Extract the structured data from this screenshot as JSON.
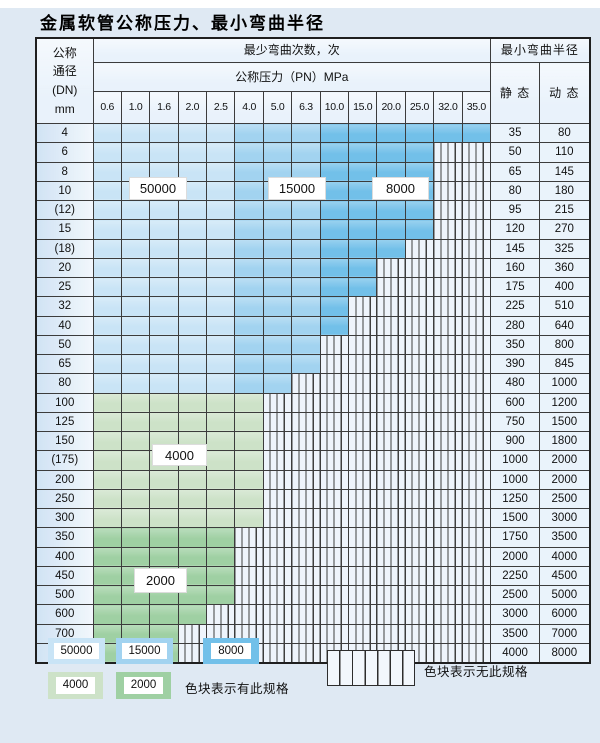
{
  "page_title": "金属软管公称压力、最小弯曲半径",
  "table": {
    "header": {
      "dn_label_lines": [
        "公称",
        "通径",
        "(DN)",
        "mm"
      ],
      "bend_cycles_label": "最少弯曲次数，次",
      "pressure_label": "公称压力（PN）MPa",
      "bend_radius_label": "最小弯曲半径",
      "static_label": "静 态",
      "dynamic_label": "动 态",
      "pressures": [
        "0.6",
        "1.0",
        "1.6",
        "2.0",
        "2.5",
        "4.0",
        "5.0",
        "6.3",
        "10.0",
        "15.0",
        "20.0",
        "25.0",
        "32.0",
        "35.0"
      ]
    },
    "palette_colors": {
      "c50000": "#c9e4f6",
      "c15000": "#a2d3f0",
      "c8000": "#72c0e9",
      "c4000": "#cde2c8",
      "c2000": "#9fd0a3"
    },
    "cycle_zones": [
      {
        "cycles": "50000",
        "palette": "c50000",
        "pressure_columns": [
          "0.6",
          "1.0",
          "1.6",
          "2.0",
          "2.5"
        ]
      },
      {
        "cycles": "15000",
        "palette": "c15000",
        "pressure_columns": [
          "4.0",
          "5.0",
          "6.3"
        ]
      },
      {
        "cycles": "8000",
        "palette": "c8000",
        "pressure_columns": [
          "10.0",
          "15.0",
          "20.0",
          "25.0",
          "32.0",
          "35.0"
        ]
      },
      {
        "cycles": "4000",
        "palette": "c4000",
        "rows": "DN 100–300"
      },
      {
        "cycles": "2000",
        "palette": "c2000",
        "rows": "DN 350–800"
      }
    ],
    "overlay_labels": [
      "50000",
      "15000",
      "8000",
      "4000",
      "2000"
    ],
    "rows": [
      {
        "dn": "4",
        "colored_through": "35.0",
        "palette": "blue",
        "static": "35",
        "dynamic": "80"
      },
      {
        "dn": "6",
        "colored_through": "25.0",
        "palette": "blue",
        "static": "50",
        "dynamic": "110"
      },
      {
        "dn": "8",
        "colored_through": "25.0",
        "palette": "blue",
        "static": "65",
        "dynamic": "145"
      },
      {
        "dn": "10",
        "colored_through": "25.0",
        "palette": "blue",
        "static": "80",
        "dynamic": "180"
      },
      {
        "dn": "(12)",
        "colored_through": "25.0",
        "palette": "blue",
        "static": "95",
        "dynamic": "215"
      },
      {
        "dn": "15",
        "colored_through": "25.0",
        "palette": "blue",
        "static": "120",
        "dynamic": "270"
      },
      {
        "dn": "(18)",
        "colored_through": "20.0",
        "palette": "blue",
        "static": "145",
        "dynamic": "325"
      },
      {
        "dn": "20",
        "colored_through": "15.0",
        "palette": "blue",
        "static": "160",
        "dynamic": "360"
      },
      {
        "dn": "25",
        "colored_through": "15.0",
        "palette": "blue",
        "static": "175",
        "dynamic": "400"
      },
      {
        "dn": "32",
        "colored_through": "10.0",
        "palette": "blue",
        "static": "225",
        "dynamic": "510"
      },
      {
        "dn": "40",
        "colored_through": "10.0",
        "palette": "blue",
        "static": "280",
        "dynamic": "640"
      },
      {
        "dn": "50",
        "colored_through": "6.3",
        "palette": "blue",
        "static": "350",
        "dynamic": "800"
      },
      {
        "dn": "65",
        "colored_through": "6.3",
        "palette": "blue",
        "static": "390",
        "dynamic": "845"
      },
      {
        "dn": "80",
        "colored_through": "5.0",
        "palette": "blue",
        "static": "480",
        "dynamic": "1000"
      },
      {
        "dn": "100",
        "colored_through": "4.0",
        "palette": "c4000",
        "static": "600",
        "dynamic": "1200"
      },
      {
        "dn": "125",
        "colored_through": "4.0",
        "palette": "c4000",
        "static": "750",
        "dynamic": "1500"
      },
      {
        "dn": "150",
        "colored_through": "4.0",
        "palette": "c4000",
        "static": "900",
        "dynamic": "1800"
      },
      {
        "dn": "(175)",
        "colored_through": "4.0",
        "palette": "c4000",
        "static": "1000",
        "dynamic": "2000"
      },
      {
        "dn": "200",
        "colored_through": "4.0",
        "palette": "c4000",
        "static": "1000",
        "dynamic": "2000"
      },
      {
        "dn": "250",
        "colored_through": "4.0",
        "palette": "c4000",
        "static": "1250",
        "dynamic": "2500"
      },
      {
        "dn": "300",
        "colored_through": "4.0",
        "palette": "c4000",
        "static": "1500",
        "dynamic": "3000"
      },
      {
        "dn": "350",
        "colored_through": "2.5",
        "palette": "c2000",
        "static": "1750",
        "dynamic": "3500"
      },
      {
        "dn": "400",
        "colored_through": "2.5",
        "palette": "c2000",
        "static": "2000",
        "dynamic": "4000"
      },
      {
        "dn": "450",
        "colored_through": "2.5",
        "palette": "c2000",
        "static": "2250",
        "dynamic": "4500"
      },
      {
        "dn": "500",
        "colored_through": "2.5",
        "palette": "c2000",
        "static": "2500",
        "dynamic": "5000"
      },
      {
        "dn": "600",
        "colored_through": "2.0",
        "palette": "c2000",
        "static": "3000",
        "dynamic": "6000"
      },
      {
        "dn": "700",
        "colored_through": "1.6",
        "palette": "c2000",
        "static": "3500",
        "dynamic": "7000"
      },
      {
        "dn": "800",
        "colored_through": "1.6",
        "palette": "c2000",
        "static": "4000",
        "dynamic": "8000"
      }
    ]
  },
  "legend": {
    "swatches": [
      {
        "value": "50000",
        "palette": "c50000"
      },
      {
        "value": "15000",
        "palette": "c15000"
      },
      {
        "value": "8000",
        "palette": "c8000"
      },
      {
        "value": "4000",
        "palette": "c4000"
      },
      {
        "value": "2000",
        "palette": "c2000"
      }
    ],
    "has_spec_text": "色块表示有此规格",
    "no_spec_text": "色块表示无此规格"
  }
}
